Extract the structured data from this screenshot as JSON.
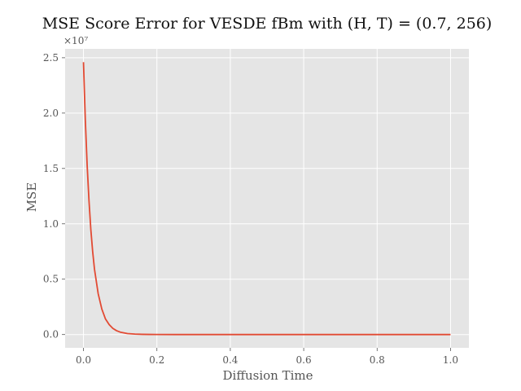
{
  "chart_data": {
    "type": "line",
    "title": "MSE Score Error for VESDE fBm with (H, T) = (0.7, 256)",
    "xlabel": "Diffusion Time",
    "ylabel": "MSE",
    "y_offset_label": "×10⁷",
    "xlim": [
      -0.05,
      1.05
    ],
    "ylim": [
      -0.12,
      2.58
    ],
    "x_ticks": [
      0.0,
      0.2,
      0.4,
      0.6,
      0.8,
      1.0
    ],
    "x_tick_labels": [
      "0.0",
      "0.2",
      "0.4",
      "0.6",
      "0.8",
      "1.0"
    ],
    "y_ticks": [
      0.0,
      0.5,
      1.0,
      1.5,
      2.0,
      2.5
    ],
    "y_tick_labels": [
      "0.0",
      "0.5",
      "1.0",
      "1.5",
      "2.0",
      "2.5"
    ],
    "grid": true,
    "series": [
      {
        "color": "#E24A33",
        "x": [
          0.0,
          0.005,
          0.01,
          0.015,
          0.02,
          0.025,
          0.03,
          0.04,
          0.05,
          0.06,
          0.07,
          0.08,
          0.09,
          0.1,
          0.12,
          0.14,
          0.16,
          0.18,
          0.2,
          0.25,
          0.3,
          0.4,
          0.5,
          0.6,
          0.7,
          0.8,
          0.9,
          1.0
        ],
        "y": [
          2.46,
          1.94,
          1.53,
          1.21,
          0.95,
          0.75,
          0.59,
          0.37,
          0.23,
          0.14,
          0.09,
          0.056,
          0.035,
          0.022,
          0.009,
          0.004,
          0.002,
          0.001,
          0.0005,
          0.0001,
          0.0,
          0.0,
          0.0,
          0.0,
          0.0,
          0.0,
          0.0,
          0.0
        ]
      }
    ]
  },
  "colors": {
    "plot_background": "#E5E5E5",
    "grid": "#FFFFFF",
    "line": "#E24A33"
  }
}
